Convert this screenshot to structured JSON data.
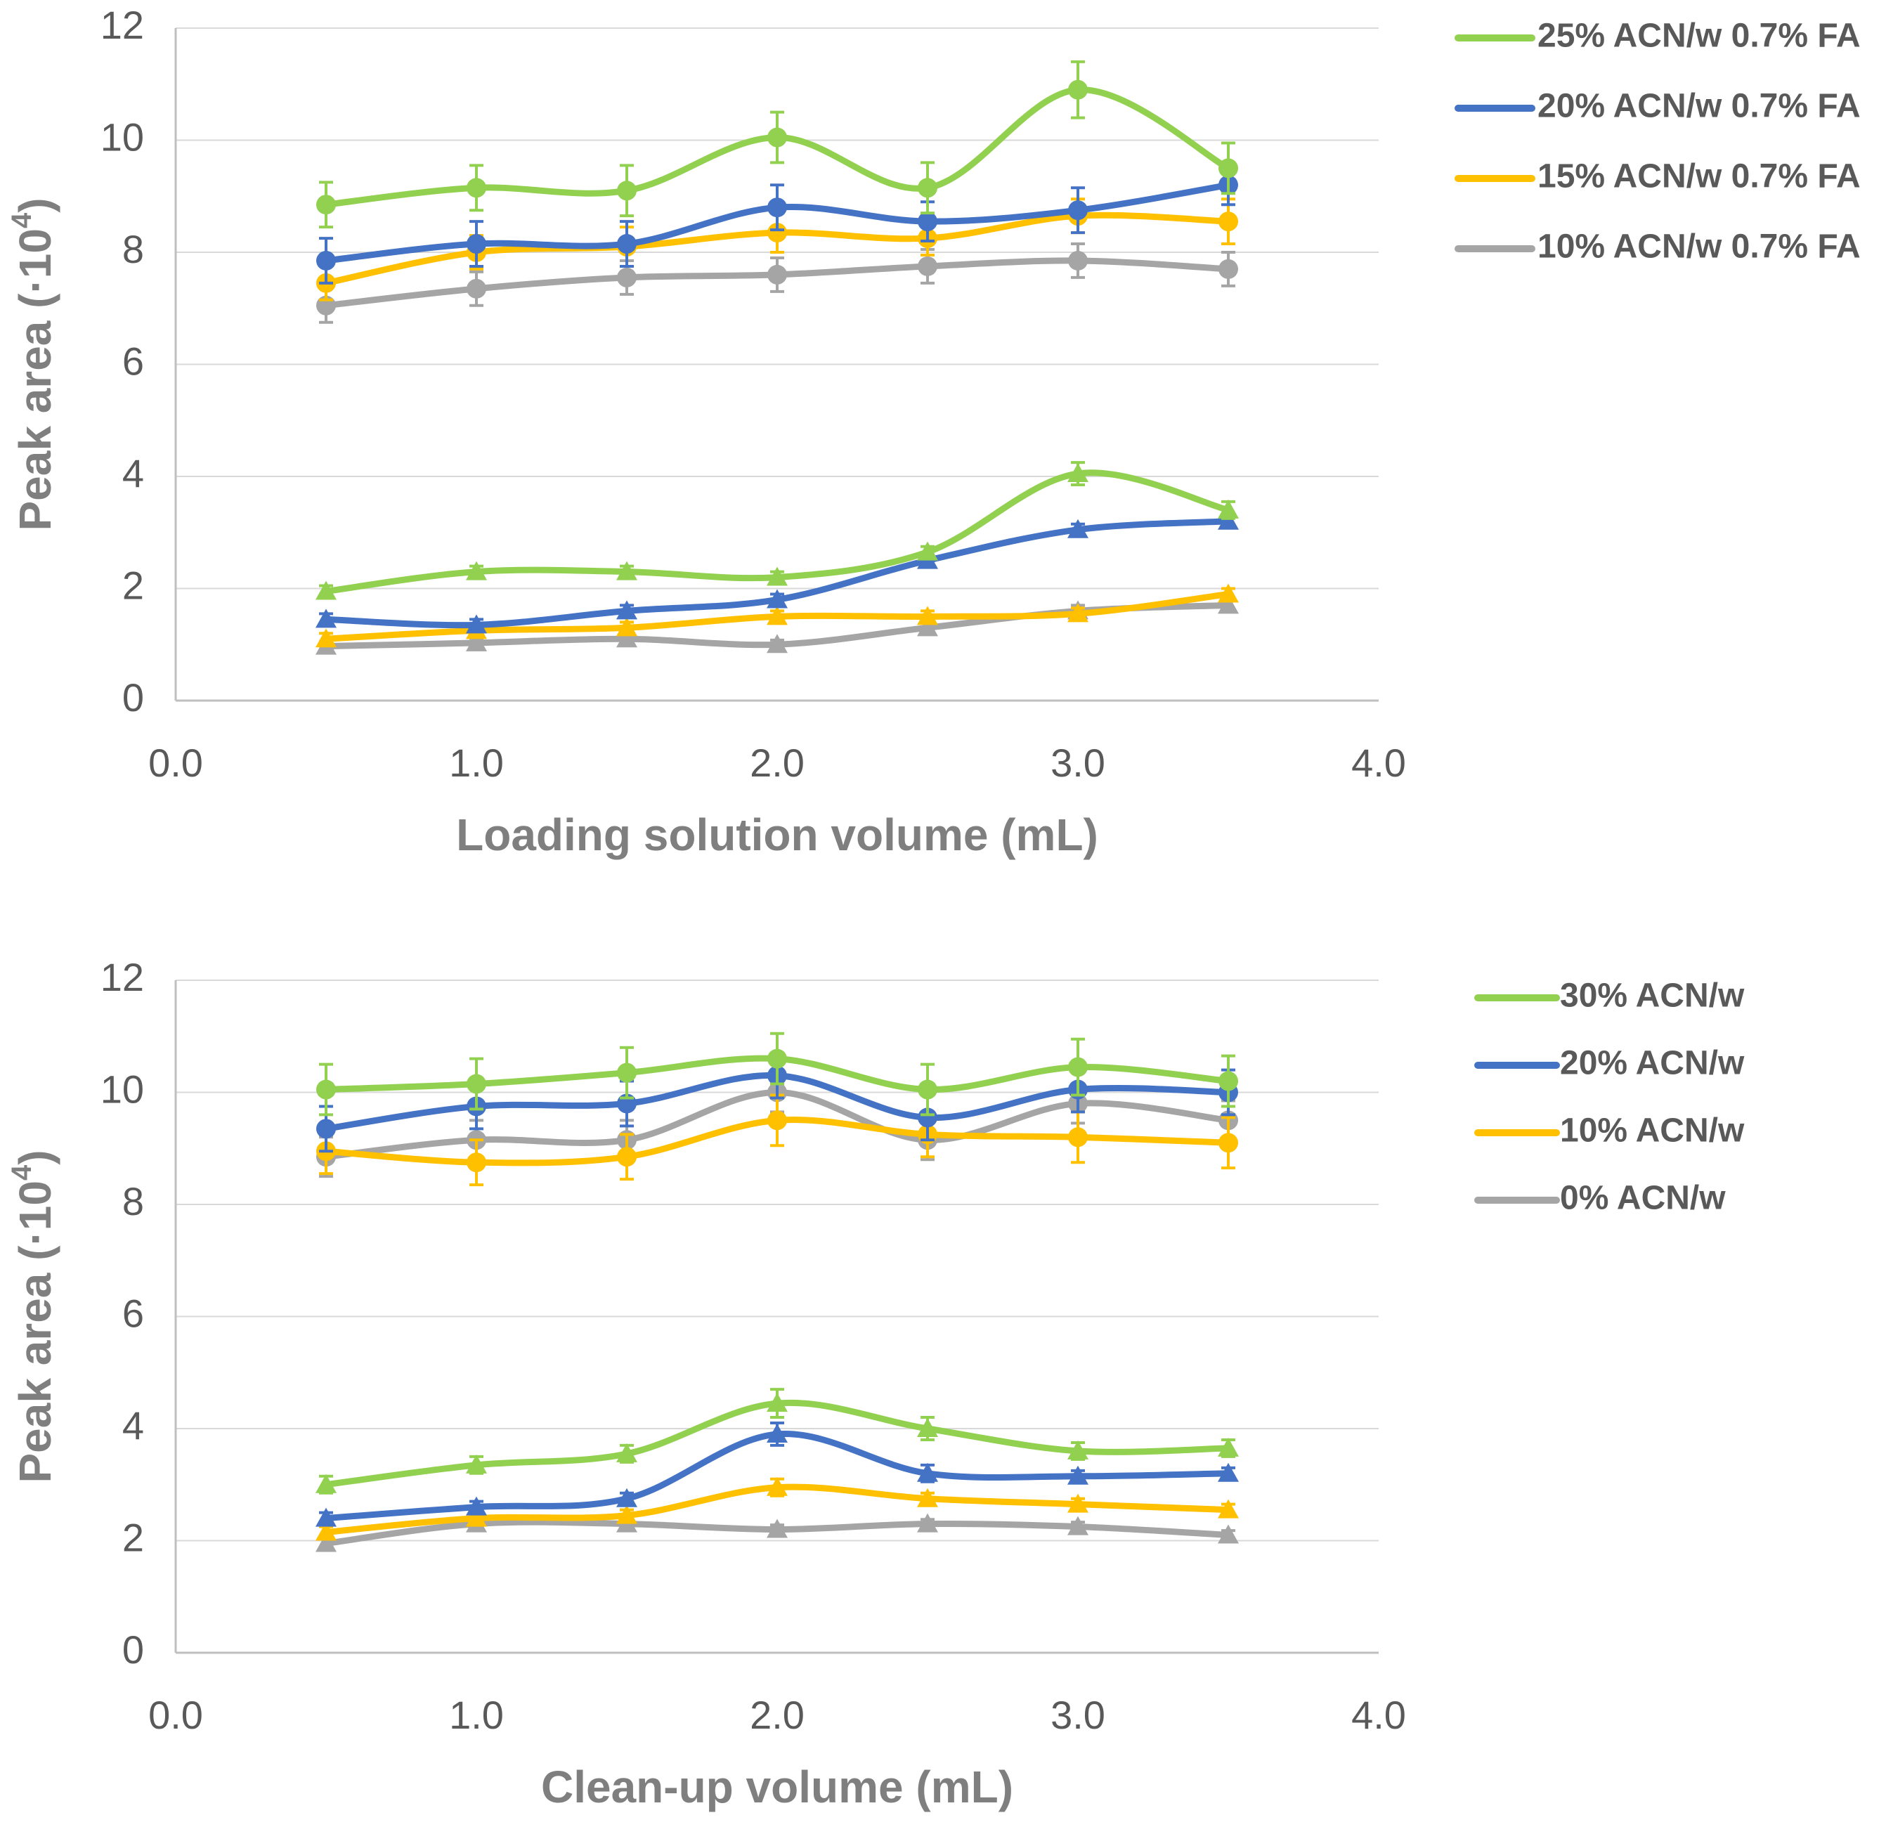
{
  "chart_data": [
    {
      "type": "line",
      "title": "",
      "xlabel": "Loading solution volume (mL)",
      "ylabel": "Peak area (·10",
      "ylabel_exp": "4",
      "ylabel_close": ")",
      "xlim": [
        0.0,
        4.0
      ],
      "ylim": [
        0,
        12
      ],
      "xticks": [
        "0.0",
        "1.0",
        "2.0",
        "3.0",
        "4.0"
      ],
      "yticks": [
        "0",
        "2",
        "4",
        "6",
        "8",
        "10",
        "12"
      ],
      "grid": true,
      "legend_position": "right",
      "x": [
        0.5,
        1.0,
        1.5,
        2.0,
        2.5,
        3.0,
        3.5
      ],
      "series": [
        {
          "name": "25% ACN/w 0.7% FA",
          "color": "#92d050",
          "marker": "circle",
          "values": [
            8.85,
            9.15,
            9.1,
            10.05,
            9.15,
            10.9,
            9.5
          ],
          "errors": [
            0.4,
            0.4,
            0.45,
            0.45,
            0.45,
            0.5,
            0.45
          ]
        },
        {
          "name": "20% ACN/w 0.7% FA",
          "color": "#4472c4",
          "marker": "circle",
          "values": [
            7.85,
            8.15,
            8.15,
            8.8,
            8.55,
            8.75,
            9.2
          ],
          "errors": [
            0.4,
            0.4,
            0.4,
            0.4,
            0.35,
            0.4,
            0.35
          ]
        },
        {
          "name": "15% ACN/w 0.7% FA",
          "color": "#ffc000",
          "marker": "circle",
          "values": [
            7.45,
            8.0,
            8.1,
            8.35,
            8.25,
            8.65,
            8.55
          ],
          "errors": [
            0.3,
            0.3,
            0.35,
            0.35,
            0.3,
            0.3,
            0.4
          ]
        },
        {
          "name": "10% ACN/w 0.7% FA",
          "color": "#a5a5a5",
          "marker": "circle",
          "values": [
            7.05,
            7.35,
            7.55,
            7.6,
            7.75,
            7.85,
            7.7
          ],
          "errors": [
            0.3,
            0.3,
            0.3,
            0.3,
            0.3,
            0.3,
            0.3
          ]
        },
        {
          "name": "25% ACN/w 0.7% FA (triangle series)",
          "color": "#92d050",
          "marker": "triangle",
          "values": [
            1.95,
            2.3,
            2.3,
            2.2,
            2.65,
            4.05,
            3.4
          ],
          "errors": [
            0.1,
            0.1,
            0.1,
            0.1,
            0.1,
            0.2,
            0.15
          ]
        },
        {
          "name": "20% ACN/w 0.7% FA (triangle series)",
          "color": "#4472c4",
          "marker": "triangle",
          "values": [
            1.45,
            1.35,
            1.6,
            1.8,
            2.5,
            3.05,
            3.2
          ],
          "errors": [
            0.1,
            0.1,
            0.1,
            0.1,
            0.1,
            0.1,
            0.1
          ]
        },
        {
          "name": "15% ACN/w 0.7% FA (triangle series)",
          "color": "#ffc000",
          "marker": "triangle",
          "values": [
            1.1,
            1.25,
            1.3,
            1.5,
            1.5,
            1.55,
            1.9
          ],
          "errors": [
            0.1,
            0.1,
            0.1,
            0.1,
            0.1,
            0.1,
            0.1
          ]
        },
        {
          "name": "10% ACN/w 0.7% FA (triangle series)",
          "color": "#a5a5a5",
          "marker": "triangle",
          "values": [
            0.97,
            1.03,
            1.1,
            1.0,
            1.3,
            1.6,
            1.7
          ],
          "errors": [
            0.08,
            0.08,
            0.08,
            0.08,
            0.08,
            0.1,
            0.1
          ]
        }
      ],
      "legend": [
        {
          "label": "25% ACN/w 0.7% FA",
          "color": "#92d050"
        },
        {
          "label": "20% ACN/w 0.7% FA",
          "color": "#4472c4"
        },
        {
          "label": "15% ACN/w 0.7% FA",
          "color": "#ffc000"
        },
        {
          "label": "10% ACN/w 0.7% FA",
          "color": "#a5a5a5"
        }
      ]
    },
    {
      "type": "line",
      "title": "",
      "xlabel": "Clean-up volume (mL)",
      "ylabel": "Peak area (·10",
      "ylabel_exp": "4",
      "ylabel_close": ")",
      "xlim": [
        0.0,
        4.0
      ],
      "ylim": [
        0,
        12
      ],
      "xticks": [
        "0.0",
        "1.0",
        "2.0",
        "3.0",
        "4.0"
      ],
      "yticks": [
        "0",
        "2",
        "4",
        "6",
        "8",
        "10",
        "12"
      ],
      "grid": true,
      "legend_position": "right",
      "x": [
        0.5,
        1.0,
        1.5,
        2.0,
        2.5,
        3.0,
        3.5
      ],
      "series": [
        {
          "name": "30% ACN/w",
          "color": "#92d050",
          "marker": "circle",
          "values": [
            10.05,
            10.15,
            10.35,
            10.6,
            10.05,
            10.45,
            10.2
          ],
          "errors": [
            0.45,
            0.45,
            0.45,
            0.45,
            0.45,
            0.5,
            0.45
          ]
        },
        {
          "name": "20% ACN/w",
          "color": "#4472c4",
          "marker": "circle",
          "values": [
            9.35,
            9.75,
            9.8,
            10.3,
            9.55,
            10.05,
            10.0
          ],
          "errors": [
            0.4,
            0.4,
            0.4,
            0.4,
            0.4,
            0.4,
            0.4
          ]
        },
        {
          "name": "10% ACN/w",
          "color": "#ffc000",
          "marker": "circle",
          "values": [
            8.95,
            8.75,
            8.85,
            9.5,
            9.25,
            9.2,
            9.1
          ],
          "errors": [
            0.4,
            0.4,
            0.4,
            0.45,
            0.4,
            0.45,
            0.45
          ]
        },
        {
          "name": "0% ACN/w",
          "color": "#a5a5a5",
          "marker": "circle",
          "values": [
            8.85,
            9.15,
            9.15,
            10.0,
            9.15,
            9.8,
            9.5
          ],
          "errors": [
            0.35,
            0.35,
            0.35,
            0.35,
            0.35,
            0.35,
            0.35
          ]
        },
        {
          "name": "30% ACN/w (triangle series)",
          "color": "#92d050",
          "marker": "triangle",
          "values": [
            3.0,
            3.35,
            3.55,
            4.45,
            4.0,
            3.6,
            3.65
          ],
          "errors": [
            0.15,
            0.15,
            0.15,
            0.25,
            0.2,
            0.15,
            0.15
          ]
        },
        {
          "name": "20% ACN/w (triangle series)",
          "color": "#4472c4",
          "marker": "triangle",
          "values": [
            2.4,
            2.6,
            2.75,
            3.9,
            3.2,
            3.15,
            3.2
          ],
          "errors": [
            0.1,
            0.1,
            0.1,
            0.2,
            0.15,
            0.1,
            0.1
          ]
        },
        {
          "name": "10% ACN/w (triangle series)",
          "color": "#ffc000",
          "marker": "triangle",
          "values": [
            2.15,
            2.4,
            2.45,
            2.95,
            2.75,
            2.65,
            2.55
          ],
          "errors": [
            0.1,
            0.1,
            0.1,
            0.15,
            0.1,
            0.1,
            0.1
          ]
        },
        {
          "name": "0% ACN/w (triangle series)",
          "color": "#a5a5a5",
          "marker": "triangle",
          "values": [
            1.95,
            2.3,
            2.3,
            2.2,
            2.3,
            2.25,
            2.1
          ],
          "errors": [
            0.08,
            0.08,
            0.08,
            0.08,
            0.08,
            0.08,
            0.08
          ]
        }
      ],
      "legend": [
        {
          "label": "30% ACN/w",
          "color": "#92d050"
        },
        {
          "label": "20% ACN/w",
          "color": "#4472c4"
        },
        {
          "label": "10% ACN/w",
          "color": "#ffc000"
        },
        {
          "label": "0% ACN/w",
          "color": "#a5a5a5"
        }
      ]
    }
  ]
}
